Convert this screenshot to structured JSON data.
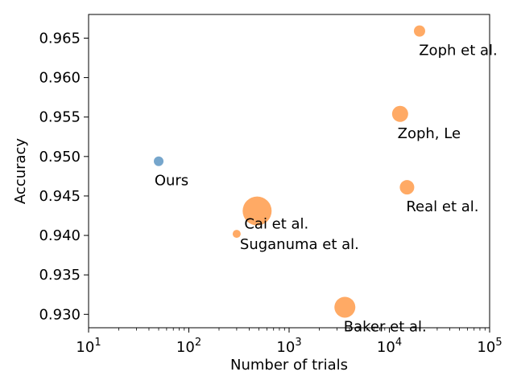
{
  "chart_data": {
    "type": "scatter",
    "title": "",
    "xlabel": "Number of trials",
    "ylabel": "Accuracy",
    "xscale": "log",
    "xlim": [
      10,
      100000
    ],
    "ylim": [
      0.9283,
      0.968
    ],
    "x_ticks": [
      {
        "value": 10,
        "base": "10",
        "exp": "1"
      },
      {
        "value": 100,
        "base": "10",
        "exp": "2"
      },
      {
        "value": 1000,
        "base": "10",
        "exp": "3"
      },
      {
        "value": 10000,
        "base": "10",
        "exp": "4"
      },
      {
        "value": 100000,
        "base": "10",
        "exp": "5"
      }
    ],
    "y_ticks": [
      "0.930",
      "0.935",
      "0.940",
      "0.945",
      "0.950",
      "0.955",
      "0.960",
      "0.965"
    ],
    "grid": false,
    "legend": "none",
    "colors": {
      "ours": "#6a9ec8",
      "others": "#ffa358"
    },
    "points": [
      {
        "label": "Ours",
        "x": 50,
        "y": 0.9494,
        "group": "ours",
        "size": 6
      },
      {
        "label": "Zoph et al.",
        "x": 20000,
        "y": 0.9659,
        "group": "others",
        "size": 7
      },
      {
        "label": "Zoph, Le",
        "x": 12800,
        "y": 0.9554,
        "group": "others",
        "size": 10
      },
      {
        "label": "Real et al.",
        "x": 15000,
        "y": 0.9461,
        "group": "others",
        "size": 9
      },
      {
        "label": "Cai et al.",
        "x": 480,
        "y": 0.9431,
        "group": "others",
        "size": 18
      },
      {
        "label": "Suganuma et al.",
        "x": 300,
        "y": 0.9402,
        "group": "others",
        "size": 5
      },
      {
        "label": "Baker et al.",
        "x": 3600,
        "y": 0.9309,
        "group": "others",
        "size": 13
      }
    ]
  }
}
